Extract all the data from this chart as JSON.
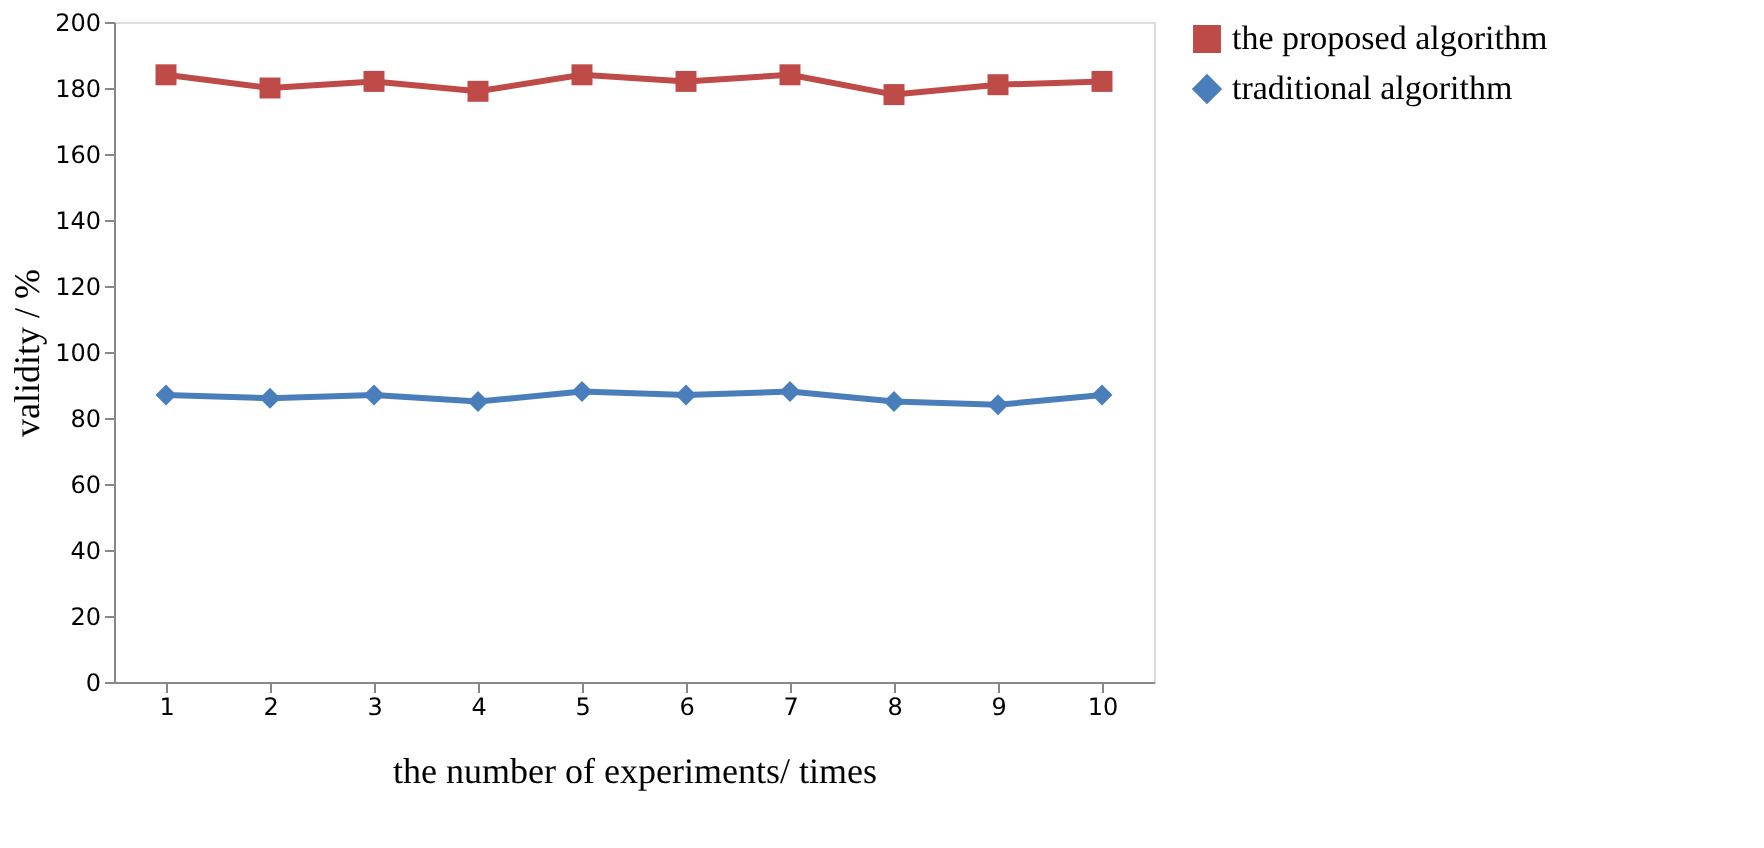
{
  "chart_data": {
    "type": "line",
    "xlabel": "the number of experiments/ times",
    "ylabel": "validity / %",
    "categories": [
      "1",
      "2",
      "3",
      "4",
      "5",
      "6",
      "7",
      "8",
      "9",
      "10"
    ],
    "series": [
      {
        "name": "the proposed algorithm",
        "color": "#be4b48",
        "marker": "square",
        "values": [
          184,
          180,
          182,
          179,
          184,
          182,
          184,
          178,
          181,
          182
        ]
      },
      {
        "name": "traditional algorithm",
        "color": "#4a7ebb",
        "marker": "diamond",
        "values": [
          87,
          86,
          87,
          85,
          88,
          87,
          88,
          85,
          84,
          87
        ]
      }
    ],
    "ylim": [
      0,
      200
    ],
    "yticks": [
      0,
      20,
      40,
      60,
      80,
      100,
      120,
      140,
      160,
      180,
      200
    ],
    "grid": false,
    "legend": "right"
  }
}
